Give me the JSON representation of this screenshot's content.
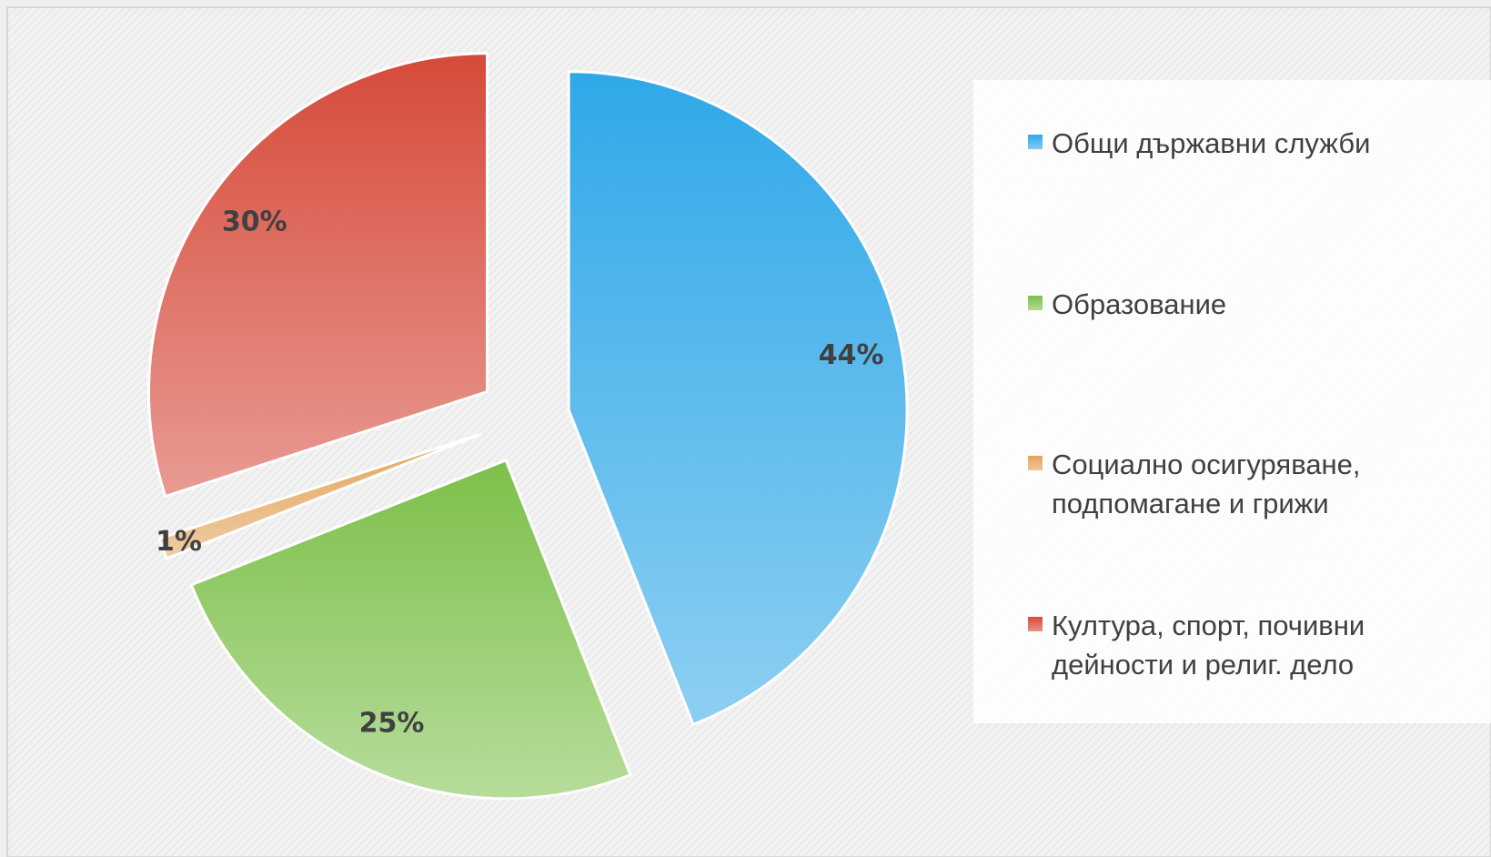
{
  "chart_data": {
    "type": "pie",
    "categories": [
      "Общи държавни служби",
      "Образование",
      "Социално осигуряване, подпомагане и грижи",
      "Култура, спорт, почивни дейности и религ. дело"
    ],
    "values": [
      44,
      25,
      1,
      30
    ],
    "value_labels": [
      "44%",
      "25%",
      "1%",
      "30%"
    ],
    "colors": [
      "#2fa8e8",
      "#7cc04a",
      "#e3a35a",
      "#d64a3a"
    ],
    "legend": "right"
  }
}
